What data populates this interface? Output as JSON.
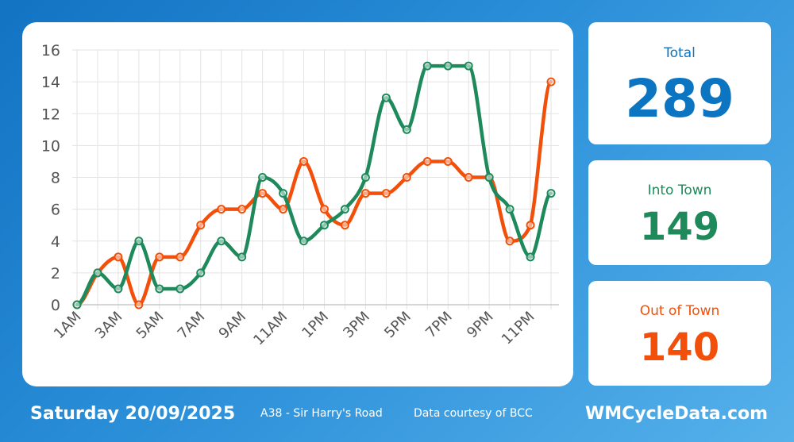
{
  "stats": {
    "total": {
      "label": "Total",
      "value": "289",
      "color": "#0c75c2"
    },
    "into": {
      "label": "Into Town",
      "value": "149",
      "color": "#1e8a5c"
    },
    "out": {
      "label": "Out of Town",
      "value": "140",
      "color": "#f2500a"
    }
  },
  "footer": {
    "date": "Saturday 20/09/2025",
    "location": "A38 - Sir Harry's Road",
    "credit": "Data courtesy of BCC",
    "site": "WMCycleData.com"
  },
  "chart_data": {
    "type": "line",
    "x": [
      "1AM",
      "2AM",
      "3AM",
      "4AM",
      "5AM",
      "6AM",
      "7AM",
      "8AM",
      "9AM",
      "10AM",
      "11AM",
      "12PM",
      "1PM",
      "2PM",
      "3PM",
      "4PM",
      "5PM",
      "6PM",
      "7PM",
      "8PM",
      "9PM",
      "10PM",
      "11PM",
      "12AM"
    ],
    "tick_labels": [
      "1AM",
      "3AM",
      "5AM",
      "7AM",
      "9AM",
      "11AM",
      "1PM",
      "3PM",
      "5PM",
      "7PM",
      "9PM",
      "11PM"
    ],
    "y_ticks": [
      "0",
      "2",
      "4",
      "6",
      "8",
      "10",
      "12",
      "14",
      "16"
    ],
    "ylim": [
      0,
      16
    ],
    "grid": true,
    "series": [
      {
        "color": "#f2500a",
        "values": [
          0,
          2,
          3,
          0,
          3,
          3,
          5,
          6,
          6,
          7,
          6,
          9,
          6,
          5,
          7,
          7,
          8,
          9,
          9,
          8,
          8,
          4,
          5,
          14
        ]
      },
      {
        "color": "#1e8a5c",
        "values": [
          0,
          2,
          1,
          4,
          1,
          1,
          2,
          4,
          3,
          8,
          7,
          4,
          5,
          6,
          8,
          13,
          11,
          15,
          15,
          15,
          8,
          6,
          3,
          7
        ]
      }
    ]
  }
}
